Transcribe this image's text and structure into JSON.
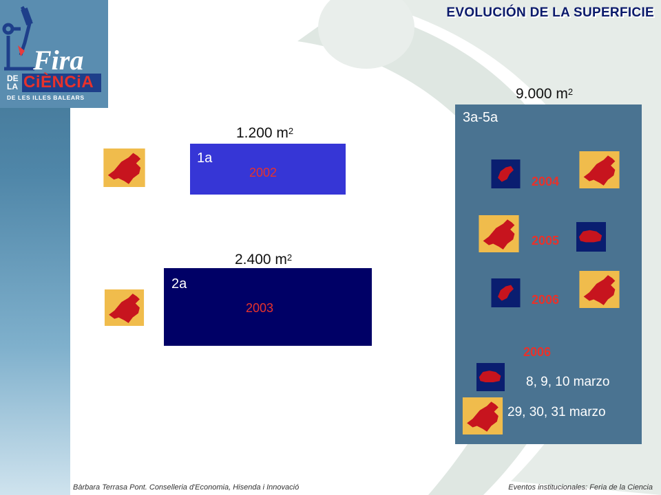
{
  "title": "EVOLUCIÓN DE LA SUPERFICIE",
  "logo": {
    "line1": "Fira",
    "line2_left": "DE",
    "line3_left": "LA",
    "line2_right": "CiÈNCiA",
    "line4": "DE LES ILLES BALEARS"
  },
  "editions": [
    {
      "area_value": "1.200 m",
      "area_exp": "2",
      "edition": "1a",
      "year": "2002",
      "color": "#3636d6"
    },
    {
      "area_value": "2.400 m",
      "area_exp": "2",
      "edition": "2a",
      "year": "2003",
      "color": "#000066"
    },
    {
      "area_value": "9.000 m",
      "area_exp": "2",
      "edition": "3a-5a",
      "color": "#4a7391",
      "years": [
        "2004",
        "2005",
        "2006",
        "2006"
      ],
      "dates": [
        "8, 9, 10 marzo",
        "29, 30, 31 marzo"
      ]
    }
  ],
  "footer": {
    "left": "Bàrbara Terrasa Pont. Conselleria d'Economia, Hisenda i Innovació",
    "right": "Eventos institucionales: Feria de la Ciencia"
  }
}
